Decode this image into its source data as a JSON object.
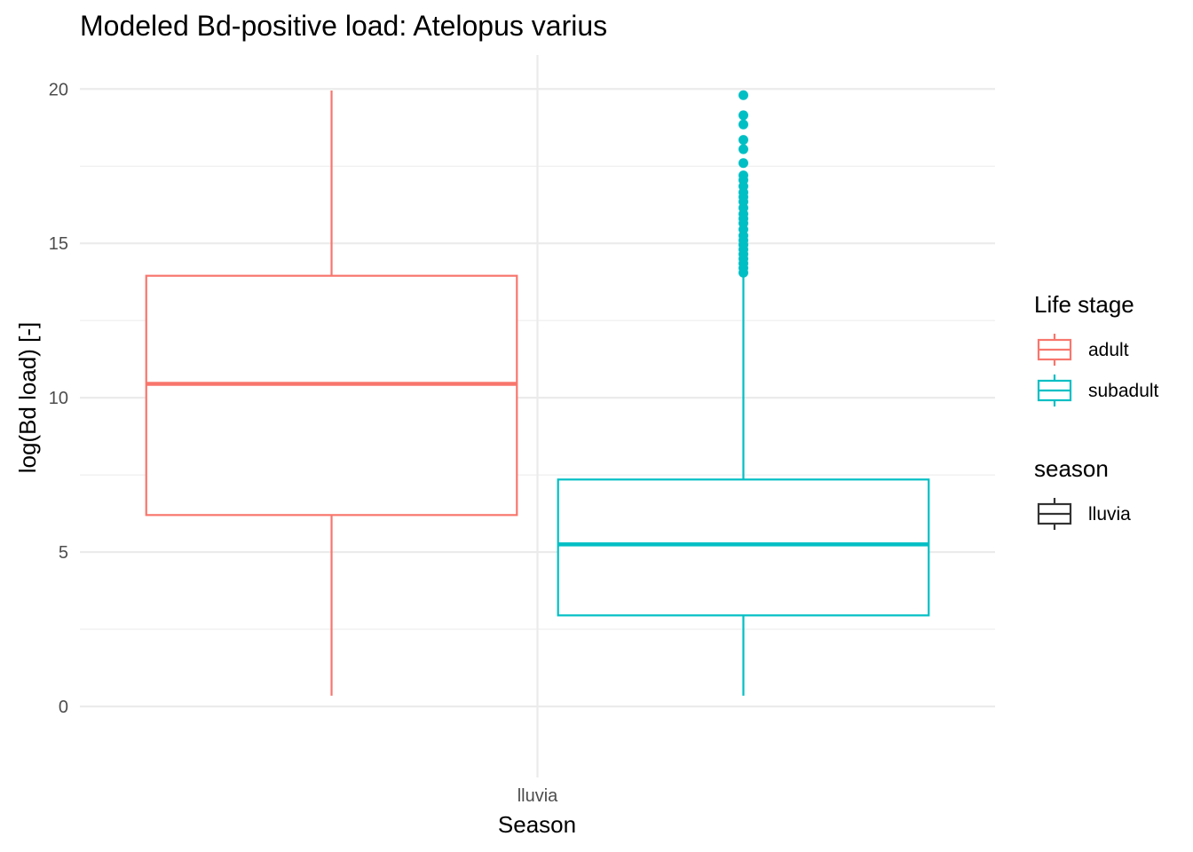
{
  "chart_data": {
    "type": "box",
    "title": "Modeled Bd-positive load: Atelopus varius",
    "xlabel": "Season",
    "ylabel": "log(Bd load) [-]",
    "categories": [
      "lluvia"
    ],
    "ylim": [
      -2.3,
      21.1
    ],
    "y_ticks": [
      0,
      5,
      10,
      15,
      20
    ],
    "grid": true,
    "series": [
      {
        "name": "adult",
        "color": "#F8766D",
        "whisker_low": 0.35,
        "q1": 6.2,
        "median": 10.45,
        "q3": 13.95,
        "whisker_high": 19.95,
        "outliers": []
      },
      {
        "name": "subadult",
        "color": "#00BFC4",
        "whisker_low": 0.35,
        "q1": 2.95,
        "median": 5.25,
        "q3": 7.35,
        "whisker_high": 13.95,
        "outliers": [
          14.05,
          14.2,
          14.35,
          14.5,
          14.65,
          14.8,
          14.95,
          15.1,
          15.25,
          15.45,
          15.65,
          15.8,
          15.95,
          16.15,
          16.35,
          16.5,
          16.65,
          16.85,
          17.05,
          17.2,
          17.6,
          18.05,
          18.35,
          18.85,
          19.15,
          19.8
        ]
      }
    ],
    "legends": [
      {
        "title": "Life stage",
        "entries": [
          {
            "label": "adult",
            "color": "#F8766D"
          },
          {
            "label": "subadult",
            "color": "#00BFC4"
          }
        ]
      },
      {
        "title": "season",
        "entries": [
          {
            "label": "lluvia",
            "color": "#333333"
          }
        ]
      }
    ],
    "legend_position": "right"
  }
}
